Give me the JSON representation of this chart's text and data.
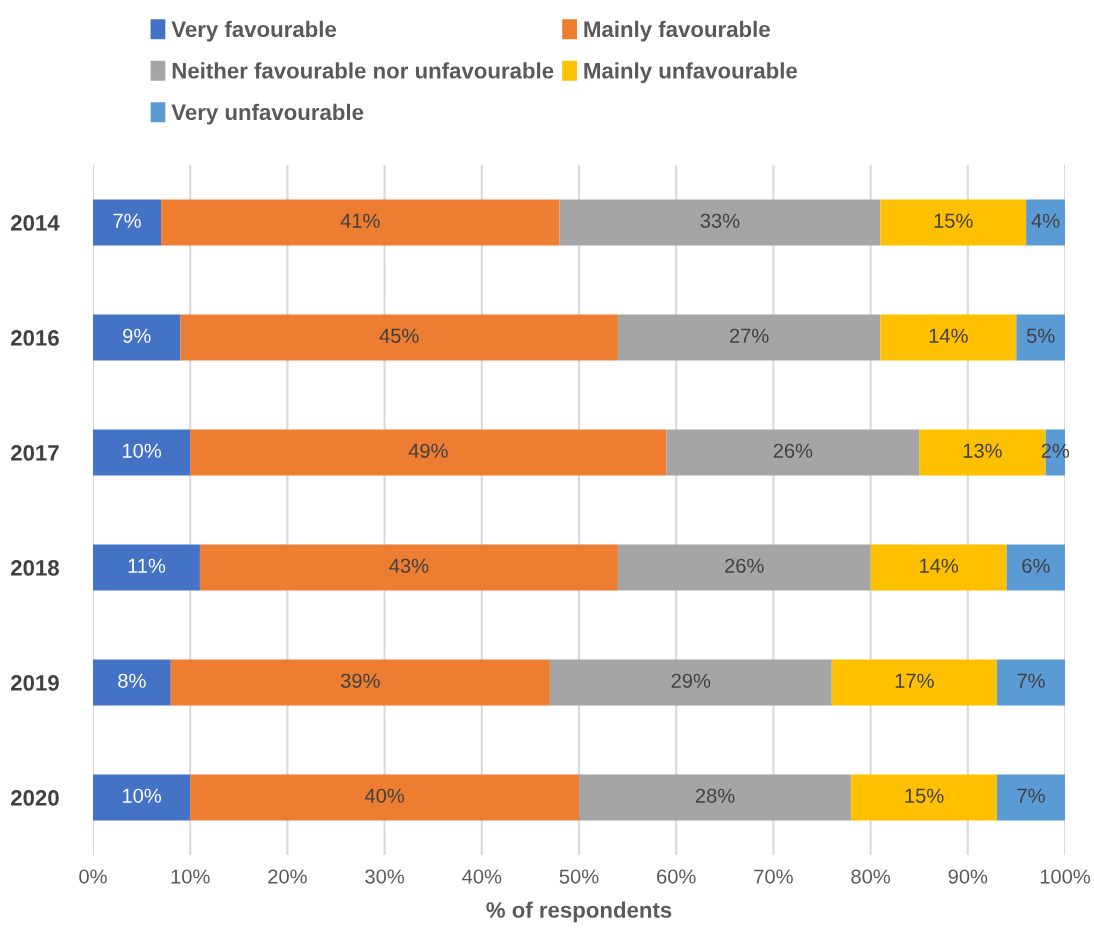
{
  "chart_data": {
    "type": "bar",
    "orientation": "horizontal",
    "stacked": true,
    "xlabel": "% of respondents",
    "categories": [
      "2014",
      "2016",
      "2017",
      "2018",
      "2019",
      "2020"
    ],
    "series": [
      {
        "name": "Very favourable",
        "color": "#4472c4",
        "values": [
          7,
          9,
          10,
          11,
          8,
          10
        ],
        "value_labels": [
          "7%",
          "9%",
          "10%",
          "11%",
          "8%",
          "10%"
        ]
      },
      {
        "name": "Mainly favourable",
        "color": "#ed7d31",
        "values": [
          41,
          45,
          49,
          43,
          39,
          40
        ],
        "value_labels": [
          "41%",
          "45%",
          "49%",
          "43%",
          "39%",
          "40%"
        ]
      },
      {
        "name": "Neither favourable nor unfavourable",
        "color": "#a5a5a5",
        "values": [
          33,
          27,
          26,
          26,
          29,
          28
        ],
        "value_labels": [
          "33%",
          "27%",
          "26%",
          "26%",
          "29%",
          "28%"
        ]
      },
      {
        "name": "Mainly unfavourable",
        "color": "#ffc000",
        "values": [
          15,
          14,
          13,
          14,
          17,
          15
        ],
        "value_labels": [
          "15%",
          "14%",
          "13%",
          "14%",
          "17%",
          "15%"
        ]
      },
      {
        "name": "Very unfavourable",
        "color": "#5b9bd5",
        "values": [
          4,
          5,
          2,
          6,
          7,
          7
        ],
        "value_labels": [
          "4%",
          "5%",
          "2%",
          "6%",
          "7%",
          "7%"
        ]
      }
    ],
    "xlim": [
      0,
      100
    ],
    "xticks": [
      {
        "value": 0,
        "label": "0%"
      },
      {
        "value": 10,
        "label": "10%"
      },
      {
        "value": 20,
        "label": "20%"
      },
      {
        "value": 30,
        "label": "30%"
      },
      {
        "value": 40,
        "label": "40%"
      },
      {
        "value": 50,
        "label": "50%"
      },
      {
        "value": 60,
        "label": "60%"
      },
      {
        "value": 70,
        "label": "70%"
      },
      {
        "value": 80,
        "label": "80%"
      },
      {
        "value": 90,
        "label": "90%"
      },
      {
        "value": 100,
        "label": "100%"
      }
    ],
    "grid": "x",
    "legend": "top"
  }
}
